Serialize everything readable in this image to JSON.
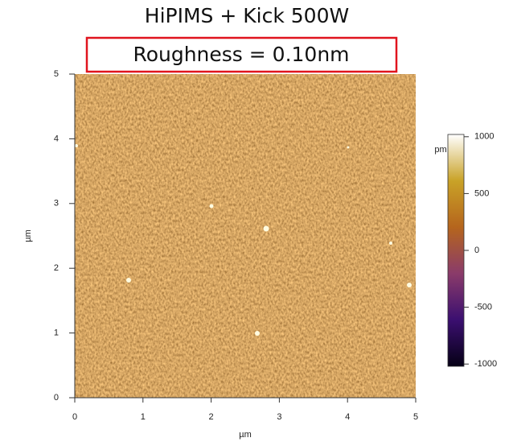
{
  "chart_data": {
    "type": "image",
    "title": "HiPIMS + Kick 500W",
    "annotation": "Roughness = 0.10nm",
    "x_label": "µm",
    "y_label": "µm",
    "xlim": [
      0,
      5
    ],
    "xticks": [
      0,
      1,
      2,
      3,
      4,
      5
    ],
    "ylim": [
      0,
      5
    ],
    "yticks": [
      0,
      1,
      2,
      3,
      4,
      5
    ],
    "colorbar": {
      "label": "pm",
      "lim": [
        -1020,
        1020
      ],
      "ticks": [
        1000,
        500,
        0,
        -500,
        -1000
      ],
      "colormap": [
        "#050015",
        "#3b0f70",
        "#8a3b6a",
        "#b5651d",
        "#c9a227",
        "#ffffff"
      ]
    }
  }
}
